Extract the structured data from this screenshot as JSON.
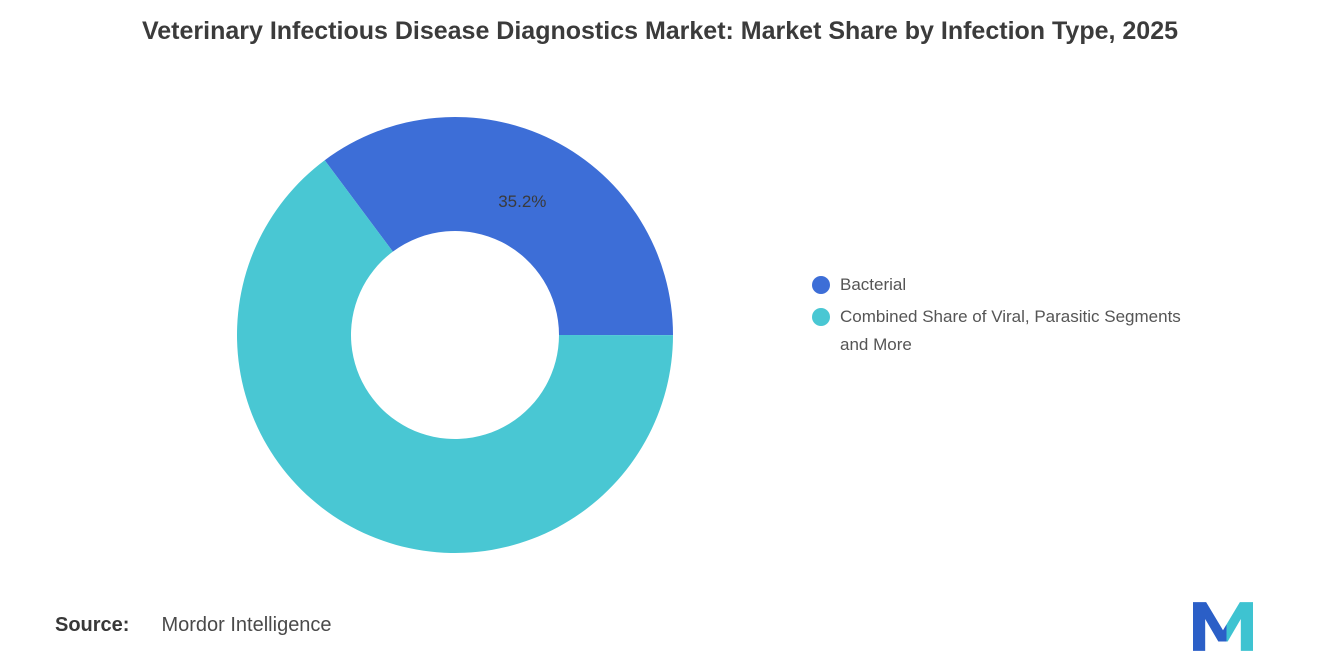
{
  "chart_data": {
    "type": "pie",
    "subtype": "donut",
    "title": "Veterinary Infectious Disease Diagnostics Market: Market Share by Infection Type, 2025",
    "rotation_deg": -36.7,
    "legend_position": "right",
    "total": 100,
    "segments": [
      {
        "label": "Bacterial",
        "value": 35.2,
        "data_label": "35.2%",
        "color": "#3D6ED7"
      },
      {
        "label": "Combined Share of Viral, Parasitic Segments and More",
        "value": 64.8,
        "data_label": "",
        "color": "#49C7D3"
      }
    ]
  },
  "source": {
    "label": "Source:",
    "text": "Mordor Intelligence"
  },
  "logo": {
    "name": "mordor-intelligence-logo",
    "blue": "#2B5FC7",
    "teal": "#3EC3D1"
  }
}
